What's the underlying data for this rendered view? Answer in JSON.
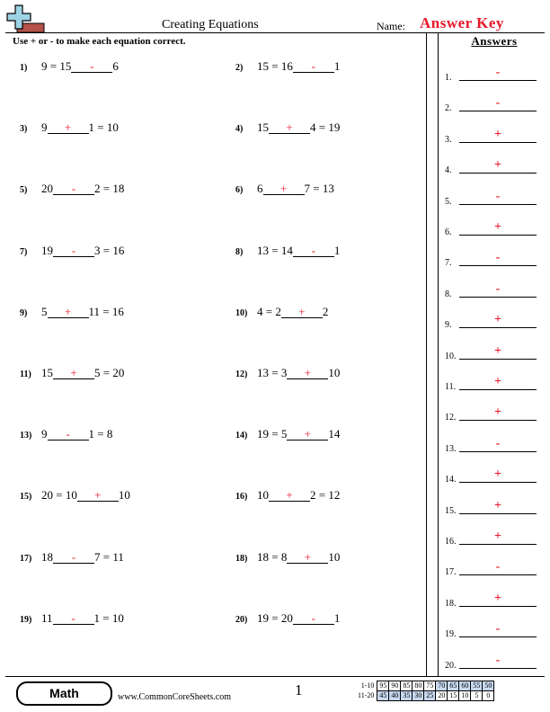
{
  "header": {
    "title": "Creating Equations",
    "name_label": "Name:",
    "answer_key": "Answer Key",
    "instructions": "Use + or - to make each equation correct."
  },
  "problems": [
    {
      "num": "1)",
      "left": "9 = 15",
      "answer": "-",
      "right": "6"
    },
    {
      "num": "2)",
      "left": "15 = 16",
      "answer": "-",
      "right": "1"
    },
    {
      "num": "3)",
      "left": "9",
      "answer": "+",
      "right": "1 = 10"
    },
    {
      "num": "4)",
      "left": "15",
      "answer": "+",
      "right": "4 = 19"
    },
    {
      "num": "5)",
      "left": "20",
      "answer": "-",
      "right": "2 = 18"
    },
    {
      "num": "6)",
      "left": "6",
      "answer": "+",
      "right": "7 = 13"
    },
    {
      "num": "7)",
      "left": "19",
      "answer": "-",
      "right": "3 = 16"
    },
    {
      "num": "8)",
      "left": "13 = 14",
      "answer": "-",
      "right": "1"
    },
    {
      "num": "9)",
      "left": "5",
      "answer": "+",
      "right": "11 = 16"
    },
    {
      "num": "10)",
      "left": "4 = 2",
      "answer": "+",
      "right": "2"
    },
    {
      "num": "11)",
      "left": "15",
      "answer": "+",
      "right": "5 = 20"
    },
    {
      "num": "12)",
      "left": "13 = 3",
      "answer": "+",
      "right": "10"
    },
    {
      "num": "13)",
      "left": "9",
      "answer": "-",
      "right": "1 = 8"
    },
    {
      "num": "14)",
      "left": "19 = 5",
      "answer": "+",
      "right": "14"
    },
    {
      "num": "15)",
      "left": "20 = 10",
      "answer": "+",
      "right": "10"
    },
    {
      "num": "16)",
      "left": "10",
      "answer": "+",
      "right": "2 = 12"
    },
    {
      "num": "17)",
      "left": "18",
      "answer": "-",
      "right": "7 = 11"
    },
    {
      "num": "18)",
      "left": "18 = 8",
      "answer": "+",
      "right": "10"
    },
    {
      "num": "19)",
      "left": "11",
      "answer": "-",
      "right": "1 = 10"
    },
    {
      "num": "20)",
      "left": "19 = 20",
      "answer": "-",
      "right": "1"
    }
  ],
  "answers_panel": {
    "title": "Answers",
    "items": [
      {
        "num": "1.",
        "value": "-"
      },
      {
        "num": "2.",
        "value": "-"
      },
      {
        "num": "3.",
        "value": "+"
      },
      {
        "num": "4.",
        "value": "+"
      },
      {
        "num": "5.",
        "value": "-"
      },
      {
        "num": "6.",
        "value": "+"
      },
      {
        "num": "7.",
        "value": "-"
      },
      {
        "num": "8.",
        "value": "-"
      },
      {
        "num": "9.",
        "value": "+"
      },
      {
        "num": "10.",
        "value": "+"
      },
      {
        "num": "11.",
        "value": "+"
      },
      {
        "num": "12.",
        "value": "+"
      },
      {
        "num": "13.",
        "value": "-"
      },
      {
        "num": "14.",
        "value": "+"
      },
      {
        "num": "15.",
        "value": "+"
      },
      {
        "num": "16.",
        "value": "+"
      },
      {
        "num": "17.",
        "value": "-"
      },
      {
        "num": "18.",
        "value": "+"
      },
      {
        "num": "19.",
        "value": "-"
      },
      {
        "num": "20.",
        "value": "-"
      }
    ]
  },
  "footer": {
    "subject": "Math",
    "website": "www.CommonCoreSheets.com",
    "page_number": "1",
    "score_rows": [
      {
        "label": "1-10",
        "scores": [
          "95",
          "90",
          "85",
          "80",
          "75",
          "70",
          "65",
          "60",
          "55",
          "50"
        ]
      },
      {
        "label": "11-20",
        "scores": [
          "45",
          "40",
          "35",
          "30",
          "25",
          "20",
          "15",
          "10",
          "5",
          "0"
        ]
      }
    ]
  },
  "colors": {
    "answer_red": "#e8182c",
    "score_highlight": "#c8d9f0"
  }
}
